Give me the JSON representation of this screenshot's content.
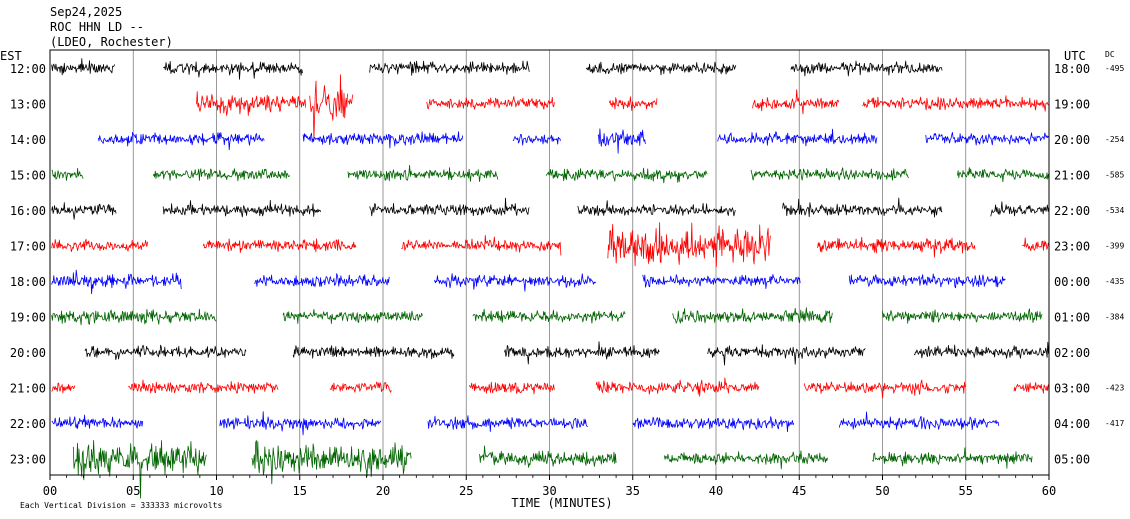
{
  "chart_data": {
    "type": "line",
    "title_lines": [
      "Sep24,2025",
      "ROC HHN LD --",
      "(LDEO, Rochester)"
    ],
    "left_axis_title": "EST",
    "right_axis_title": "UTC",
    "dc_title": "DC",
    "xlabel": "TIME (MINUTES)",
    "xlim": [
      0,
      60
    ],
    "x_ticks": [
      {
        "v": 0,
        "l": "00"
      },
      {
        "v": 5,
        "l": "05"
      },
      {
        "v": 10,
        "l": "10"
      },
      {
        "v": 15,
        "l": "15"
      },
      {
        "v": 20,
        "l": "20"
      },
      {
        "v": 25,
        "l": "25"
      },
      {
        "v": 30,
        "l": "30"
      },
      {
        "v": 35,
        "l": "35"
      },
      {
        "v": 40,
        "l": "40"
      },
      {
        "v": 45,
        "l": "45"
      },
      {
        "v": 50,
        "l": "50"
      },
      {
        "v": 55,
        "l": "55"
      },
      {
        "v": 60,
        "l": "60"
      }
    ],
    "footer_note": "Each Vertical Division = 333333 microvolts",
    "rows": [
      {
        "est": "12:00",
        "utc": "18:00",
        "dc": "-495",
        "color": "#000000",
        "segments": [
          [
            0.1,
            3.9,
            1.0
          ],
          [
            6.8,
            15.2,
            1.0
          ],
          [
            19.2,
            28.8,
            1.0
          ],
          [
            32.2,
            41.2,
            1.0
          ],
          [
            44.5,
            53.6,
            1.0
          ]
        ]
      },
      {
        "est": "13:00",
        "utc": "19:00",
        "dc": "",
        "color": "#ff0000",
        "segments": [
          [
            8.8,
            15.4,
            1.7
          ],
          [
            15.6,
            17.9,
            3.5
          ],
          [
            17.9,
            18.2,
            1.7
          ],
          [
            22.6,
            30.3,
            1.0
          ],
          [
            33.6,
            36.5,
            1.0
          ],
          [
            42.2,
            47.4,
            1.0
          ],
          [
            48.8,
            60,
            1.0
          ]
        ]
      },
      {
        "est": "14:00",
        "utc": "20:00",
        "dc": "-254",
        "color": "#0000ff",
        "segments": [
          [
            2.9,
            12.9,
            1.0
          ],
          [
            15.2,
            24.8,
            1.0
          ],
          [
            27.8,
            30.7,
            1.0
          ],
          [
            32.9,
            35.8,
            1.7
          ],
          [
            40.1,
            49.7,
            1.0
          ],
          [
            52.6,
            60,
            1.0
          ]
        ]
      },
      {
        "est": "15:00",
        "utc": "21:00",
        "dc": "-585",
        "color": "#006400",
        "segments": [
          [
            0.1,
            2.0,
            1.0
          ],
          [
            6.2,
            14.4,
            1.0
          ],
          [
            17.9,
            26.9,
            1.0
          ],
          [
            29.8,
            39.5,
            1.0
          ],
          [
            42.1,
            51.6,
            1.0
          ],
          [
            54.5,
            60,
            1.0
          ]
        ]
      },
      {
        "est": "16:00",
        "utc": "22:00",
        "dc": "-534",
        "color": "#000000",
        "segments": [
          [
            0.1,
            4.0,
            1.0
          ],
          [
            6.8,
            16.3,
            1.0
          ],
          [
            19.2,
            28.8,
            1.0
          ],
          [
            31.7,
            41.2,
            1.0
          ],
          [
            44.0,
            53.6,
            1.0
          ],
          [
            56.5,
            60,
            1.0
          ]
        ]
      },
      {
        "est": "17:00",
        "utc": "23:00",
        "dc": "-399",
        "color": "#ff0000",
        "segments": [
          [
            0.1,
            5.9,
            1.0
          ],
          [
            9.2,
            18.4,
            1.0
          ],
          [
            21.1,
            30.7,
            1.0
          ],
          [
            33.5,
            43.3,
            3.5
          ],
          [
            46.1,
            55.6,
            1.2
          ],
          [
            58.4,
            60,
            1.0
          ]
        ]
      },
      {
        "est": "18:00",
        "utc": "00:00",
        "dc": "-435",
        "color": "#0000ff",
        "segments": [
          [
            0.1,
            7.9,
            1.2
          ],
          [
            12.3,
            20.4,
            1.0
          ],
          [
            23.1,
            32.8,
            1.0
          ],
          [
            35.6,
            45.1,
            1.0
          ],
          [
            48.0,
            57.4,
            1.0
          ]
        ]
      },
      {
        "est": "19:00",
        "utc": "01:00",
        "dc": "-384",
        "color": "#006400",
        "segments": [
          [
            0.1,
            10.0,
            1.2
          ],
          [
            14.0,
            22.4,
            1.0
          ],
          [
            25.4,
            34.6,
            1.0
          ],
          [
            37.4,
            47.0,
            1.2
          ],
          [
            50.0,
            59.6,
            1.0
          ]
        ]
      },
      {
        "est": "20:00",
        "utc": "02:00",
        "dc": "",
        "color": "#000000",
        "segments": [
          [
            2.1,
            11.8,
            1.0
          ],
          [
            14.6,
            24.3,
            1.0
          ],
          [
            27.3,
            36.6,
            1.0
          ],
          [
            39.5,
            49.0,
            1.0
          ],
          [
            51.9,
            60,
            1.0
          ]
        ]
      },
      {
        "est": "21:00",
        "utc": "03:00",
        "dc": "-423",
        "color": "#ff0000",
        "segments": [
          [
            0.1,
            1.5,
            1.0
          ],
          [
            4.7,
            13.7,
            1.0
          ],
          [
            16.8,
            20.5,
            1.0
          ],
          [
            25.2,
            30.3,
            1.0
          ],
          [
            32.8,
            42.6,
            1.0
          ],
          [
            45.3,
            55.0,
            1.0
          ],
          [
            57.9,
            60,
            1.0
          ]
        ]
      },
      {
        "est": "22:00",
        "utc": "04:00",
        "dc": "-417",
        "color": "#0000ff",
        "segments": [
          [
            0.1,
            5.6,
            1.0
          ],
          [
            10.2,
            19.9,
            1.0
          ],
          [
            22.7,
            32.3,
            1.0
          ],
          [
            35.0,
            44.7,
            1.0
          ],
          [
            47.4,
            57.0,
            1.0
          ]
        ]
      },
      {
        "est": "23:00",
        "utc": "05:00",
        "dc": "",
        "color": "#006400",
        "segments": [
          [
            1.4,
            9.4,
            2.8
          ],
          [
            12.1,
            21.7,
            2.8
          ],
          [
            25.8,
            34.0,
            1.2
          ],
          [
            36.9,
            46.7,
            1.0
          ],
          [
            49.4,
            59.0,
            1.0
          ]
        ]
      }
    ]
  }
}
